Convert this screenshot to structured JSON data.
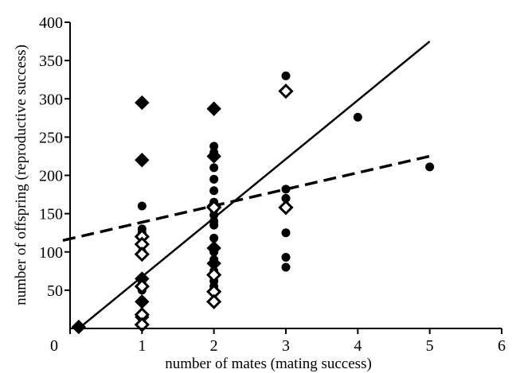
{
  "chart_data": {
    "type": "scatter",
    "title": "",
    "xlabel": "number of mates (mating success)",
    "ylabel": "number of offspring (reproductive success)",
    "xlim": [
      0,
      6
    ],
    "ylim": [
      0,
      400
    ],
    "x_ticks": [
      0,
      1,
      2,
      3,
      4,
      5,
      6
    ],
    "y_ticks": [
      50,
      100,
      150,
      200,
      250,
      300,
      350,
      400
    ],
    "grid": false,
    "legend": "none",
    "series": [
      {
        "marker": "filled-circle",
        "color": "#000000",
        "points": [
          [
            1,
            160
          ],
          [
            1,
            130
          ],
          [
            1,
            125
          ],
          [
            1,
            100
          ],
          [
            1,
            65
          ],
          [
            1,
            62
          ],
          [
            1,
            50
          ],
          [
            2,
            238
          ],
          [
            2,
            230
          ],
          [
            2,
            210
          ],
          [
            2,
            195
          ],
          [
            2,
            180
          ],
          [
            2,
            165
          ],
          [
            2,
            155
          ],
          [
            2,
            148
          ],
          [
            2,
            140
          ],
          [
            2,
            135
          ],
          [
            2,
            118
          ],
          [
            2,
            100
          ],
          [
            2,
            90
          ],
          [
            2,
            75
          ],
          [
            2,
            62
          ],
          [
            2,
            55
          ],
          [
            3,
            330
          ],
          [
            3,
            182
          ],
          [
            3,
            170
          ],
          [
            3,
            125
          ],
          [
            3,
            93
          ],
          [
            3,
            80
          ],
          [
            4,
            276
          ],
          [
            5,
            211
          ]
        ]
      },
      {
        "marker": "filled-diamond",
        "color": "#000000",
        "points": [
          [
            0.12,
            2
          ],
          [
            1,
            295
          ],
          [
            1,
            220
          ],
          [
            1,
            65
          ],
          [
            1,
            35
          ],
          [
            1,
            15
          ],
          [
            2,
            287
          ],
          [
            2,
            225
          ],
          [
            2,
            160
          ],
          [
            2,
            105
          ],
          [
            2,
            85
          ]
        ]
      },
      {
        "marker": "open-diamond",
        "color": "#000000",
        "points": [
          [
            1,
            120
          ],
          [
            1,
            110
          ],
          [
            1,
            97
          ],
          [
            1,
            55
          ],
          [
            1,
            18
          ],
          [
            1,
            5
          ],
          [
            2,
            158
          ],
          [
            2,
            70
          ],
          [
            2,
            48
          ],
          [
            2,
            35
          ],
          [
            3,
            310
          ],
          [
            3,
            158
          ]
        ]
      }
    ],
    "lines": [
      {
        "style": "solid",
        "x": [
          0.12,
          5
        ],
        "y": [
          0,
          375
        ]
      },
      {
        "style": "dashed",
        "x": [
          -0.1,
          5
        ],
        "y": [
          115,
          225
        ]
      }
    ]
  }
}
